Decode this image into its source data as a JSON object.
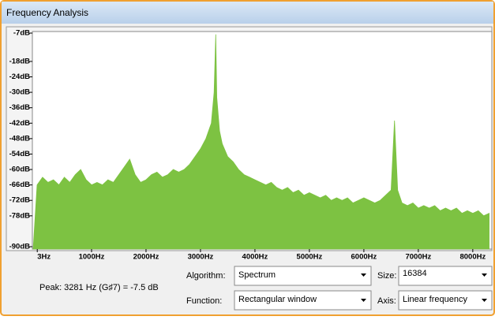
{
  "window": {
    "title": "Frequency Analysis"
  },
  "chart_data": {
    "type": "area",
    "color": "#7dc242",
    "x": [
      0,
      100,
      200,
      300,
      400,
      500,
      600,
      700,
      800,
      900,
      1000,
      1100,
      1200,
      1300,
      1400,
      1500,
      1600,
      1700,
      1800,
      1900,
      2000,
      2100,
      2200,
      2300,
      2400,
      2500,
      2600,
      2700,
      2800,
      2900,
      3000,
      3100,
      3200,
      3250,
      3281,
      3300,
      3350,
      3400,
      3500,
      3600,
      3700,
      3800,
      3900,
      4000,
      4100,
      4200,
      4300,
      4400,
      4500,
      4600,
      4700,
      4800,
      4900,
      5000,
      5100,
      5200,
      5300,
      5400,
      5500,
      5600,
      5700,
      5800,
      5900,
      6000,
      6100,
      6200,
      6300,
      6400,
      6500,
      6562,
      6620,
      6700,
      6800,
      6900,
      7000,
      7100,
      7200,
      7300,
      7400,
      7500,
      7600,
      7700,
      7800,
      7900,
      8000,
      8100,
      8200,
      8300
    ],
    "values": [
      -66,
      -63,
      -65,
      -64,
      -66,
      -63,
      -65,
      -62,
      -60,
      -64,
      -66,
      -65,
      -66,
      -64,
      -65,
      -62,
      -59,
      -56,
      -62,
      -65,
      -64,
      -62,
      -61,
      -63,
      -62,
      -60,
      -61,
      -60,
      -58,
      -55,
      -52,
      -48,
      -42,
      -30,
      -7.5,
      -32,
      -45,
      -50,
      -55,
      -57,
      -60,
      -62,
      -63,
      -64,
      -65,
      -66,
      -65,
      -67,
      -68,
      -67,
      -69,
      -68,
      -70,
      -69,
      -70,
      -71,
      -70,
      -72,
      -71,
      -72,
      -71,
      -73,
      -72,
      -71,
      -72,
      -73,
      -72,
      -70,
      -68,
      -41,
      -68,
      -73,
      -74,
      -73,
      -75,
      -74,
      -75,
      -74,
      -76,
      -75,
      -76,
      -75,
      -77,
      -76,
      -77,
      -76,
      -78,
      -77
    ],
    "xlim": [
      0,
      8350
    ],
    "ylim": [
      -90,
      -7
    ],
    "xticks": [
      {
        "value": 3,
        "label": "3Hz"
      },
      {
        "value": 1000,
        "label": "1000Hz"
      },
      {
        "value": 2000,
        "label": "2000Hz"
      },
      {
        "value": 3000,
        "label": "3000Hz"
      },
      {
        "value": 4000,
        "label": "4000Hz"
      },
      {
        "value": 5000,
        "label": "5000Hz"
      },
      {
        "value": 6000,
        "label": "6000Hz"
      },
      {
        "value": 7000,
        "label": "7000Hz"
      },
      {
        "value": 8000,
        "label": "8000Hz"
      }
    ],
    "yticks": [
      {
        "value": -7,
        "label": "-7dB"
      },
      {
        "value": -18,
        "label": "-18dB"
      },
      {
        "value": -24,
        "label": "-24dB"
      },
      {
        "value": -30,
        "label": "-30dB"
      },
      {
        "value": -36,
        "label": "-36dB"
      },
      {
        "value": -42,
        "label": "-42dB"
      },
      {
        "value": -48,
        "label": "-48dB"
      },
      {
        "value": -54,
        "label": "-54dB"
      },
      {
        "value": -60,
        "label": "-60dB"
      },
      {
        "value": -66,
        "label": "-66dB"
      },
      {
        "value": -72,
        "label": "-72dB"
      },
      {
        "value": -78,
        "label": "-78dB"
      },
      {
        "value": -90,
        "label": "-90dB"
      }
    ]
  },
  "controls": {
    "peak": "Peak: 3281 Hz (G♯7) = -7.5 dB",
    "algorithm_label": "Algorithm:",
    "algorithm": "Spectrum",
    "size_label": "Size:",
    "size": "16384",
    "function_label": "Function:",
    "function": "Rectangular window",
    "axis_label": "Axis:",
    "axis": "Linear frequency"
  }
}
